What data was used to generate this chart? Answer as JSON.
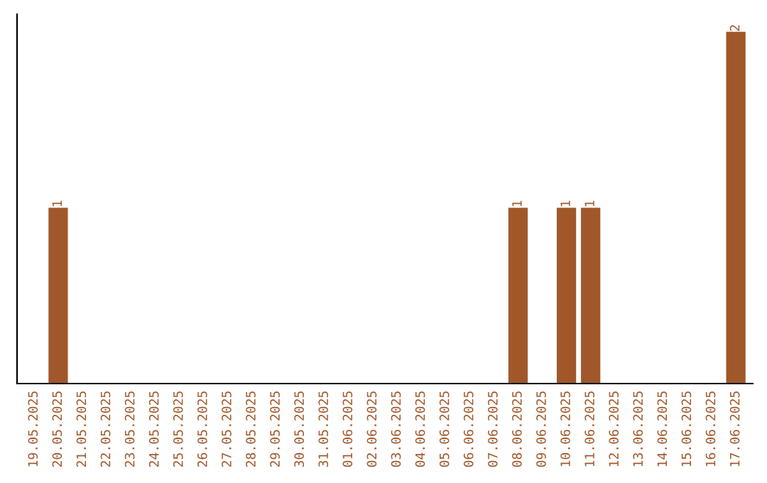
{
  "chart_data": {
    "type": "bar",
    "categories": [
      "19.05.2025",
      "20.05.2025",
      "21.05.2025",
      "22.05.2025",
      "23.05.2025",
      "24.05.2025",
      "25.05.2025",
      "26.05.2025",
      "27.05.2025",
      "28.05.2025",
      "29.05.2025",
      "30.05.2025",
      "31.05.2025",
      "01.06.2025",
      "02.06.2025",
      "03.06.2025",
      "04.06.2025",
      "05.06.2025",
      "06.06.2025",
      "07.06.2025",
      "08.06.2025",
      "09.06.2025",
      "10.06.2025",
      "11.06.2025",
      "12.06.2025",
      "13.06.2025",
      "14.06.2025",
      "15.06.2025",
      "16.06.2025",
      "17.06.2025"
    ],
    "values": [
      0,
      1,
      0,
      0,
      0,
      0,
      0,
      0,
      0,
      0,
      0,
      0,
      0,
      0,
      0,
      0,
      0,
      0,
      0,
      0,
      1,
      0,
      1,
      1,
      0,
      0,
      0,
      0,
      0,
      2
    ],
    "value_labels": [
      null,
      "1",
      null,
      null,
      null,
      null,
      null,
      null,
      null,
      null,
      null,
      null,
      null,
      null,
      null,
      null,
      null,
      null,
      null,
      null,
      "1",
      null,
      "1",
      "1",
      null,
      null,
      null,
      null,
      null,
      "2"
    ],
    "color": "#a0582a",
    "ylim": [
      0,
      2.1
    ],
    "tick_labels": "x",
    "grid": false,
    "legend": false
  }
}
